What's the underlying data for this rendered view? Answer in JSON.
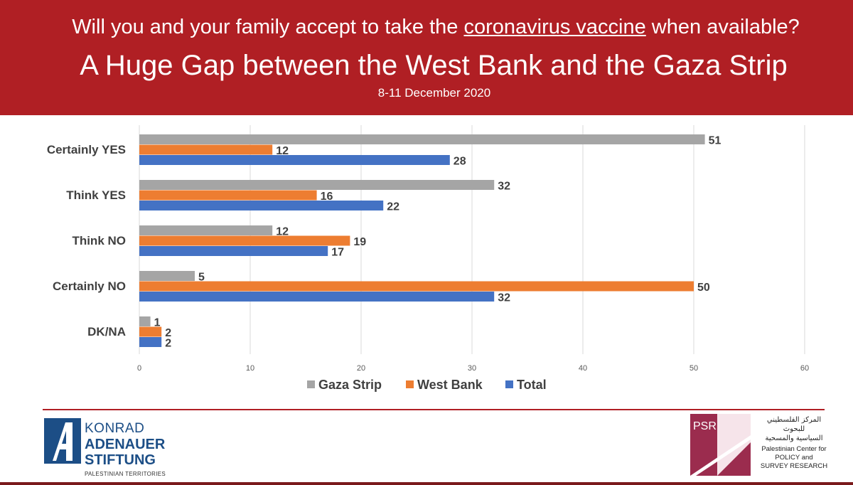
{
  "header": {
    "question_prefix": "Will you and your family accept to take the ",
    "question_link": "coronavirus vaccine",
    "question_suffix": " when available?",
    "headline": "A Huge Gap between the West Bank and the Gaza Strip",
    "date": "8-11 December 2020"
  },
  "colors": {
    "header_bg": "#b01f24",
    "gaza": "#a5a5a5",
    "west_bank": "#ed7d31",
    "total": "#4472c4"
  },
  "chart_data": {
    "type": "bar",
    "orientation": "horizontal",
    "categories": [
      "Certainly YES",
      "Think YES",
      "Think NO",
      "Certainly NO",
      "DK/NA"
    ],
    "series": [
      {
        "name": "Gaza Strip",
        "values": [
          51,
          32,
          12,
          5,
          1
        ]
      },
      {
        "name": "West Bank",
        "values": [
          12,
          16,
          19,
          50,
          2
        ]
      },
      {
        "name": "Total",
        "values": [
          28,
          22,
          17,
          32,
          2
        ]
      }
    ],
    "xticks": [
      0,
      10,
      20,
      30,
      40,
      50,
      60
    ],
    "xlim": [
      0,
      60
    ],
    "grid": true,
    "legend": "bottom"
  },
  "footer": {
    "kas": {
      "line1": "KONRAD",
      "line2": "ADENAUER",
      "line3": "STIFTUNG",
      "line4": "PALESTINIAN TERRITORIES"
    },
    "psr": {
      "badge": "PSR",
      "arabic": [
        "المركز الفلسطيني",
        "للبحوث",
        "السياسية والمسحية"
      ],
      "english": [
        "Palestinian Center for",
        "POLICY and",
        "SURVEY RESEARCH"
      ]
    }
  }
}
